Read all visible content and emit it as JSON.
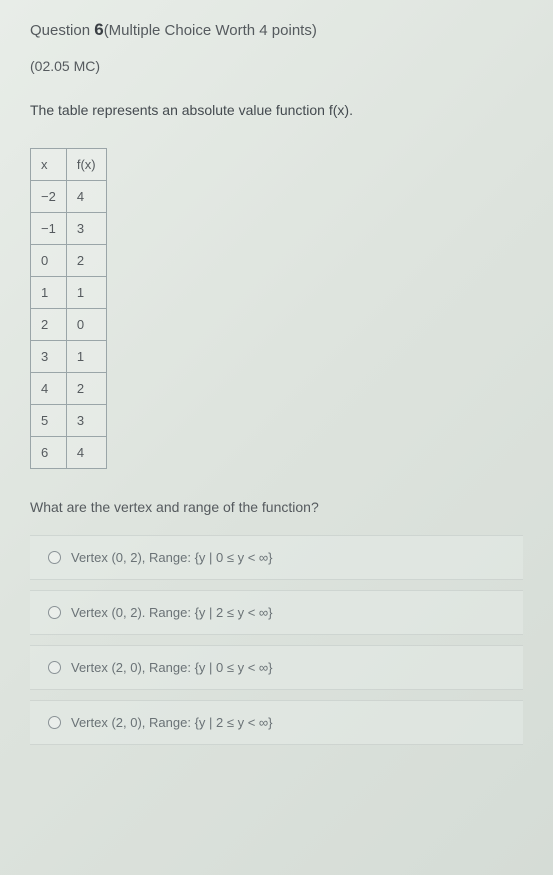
{
  "header": {
    "prefix": "Question ",
    "number": "6",
    "suffix": "(Multiple Choice Worth 4 points)"
  },
  "code": "(02.05 MC)",
  "stem": "The table represents an absolute value function f(x).",
  "table": {
    "columns": [
      "x",
      "f(x)"
    ],
    "rows": [
      [
        "−2",
        "4"
      ],
      [
        "−1",
        "3"
      ],
      [
        "0",
        "2"
      ],
      [
        "1",
        "1"
      ],
      [
        "2",
        "0"
      ],
      [
        "3",
        "1"
      ],
      [
        "4",
        "2"
      ],
      [
        "5",
        "3"
      ],
      [
        "6",
        "4"
      ]
    ],
    "border_color": "#9aa5a8",
    "text_color": "#555a5e",
    "fontsize": 13
  },
  "subquestion": "What are the vertex and range of the function?",
  "choices": [
    "Vertex (0, 2), Range: {y | 0 ≤ y < ∞}",
    "Vertex (0, 2). Range: {y | 2 ≤ y < ∞}",
    "Vertex (2, 0), Range: {y | 0 ≤ y < ∞}",
    "Vertex (2, 0), Range: {y | 2 ≤ y < ∞}"
  ],
  "colors": {
    "background_start": "#e8ede8",
    "background_end": "#d5dcd6",
    "text_primary": "#4a5055",
    "text_secondary": "#6a7276"
  }
}
